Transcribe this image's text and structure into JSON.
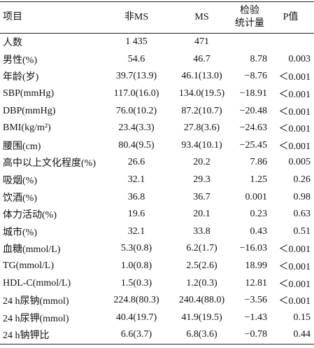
{
  "table": {
    "header": [
      "项目",
      "非MS",
      "MS",
      "检验\n统计量",
      "P值"
    ],
    "rows": [
      [
        "人数",
        "1 435",
        "471",
        "",
        ""
      ],
      [
        "男性(%)",
        "54.6",
        "46.7",
        "8.78",
        "0.003"
      ],
      [
        "年龄(岁)",
        "39.7(13.9)",
        "46.1(13.0)",
        "−8.76",
        "＜0.001"
      ],
      [
        "SBP(mmHg)",
        "117.0(16.0)",
        "134.0(19.5)",
        "−18.91",
        "＜0.001"
      ],
      [
        "DBP(mmHg)",
        "76.0(10.2)",
        "87.2(10.7)",
        "−20.48",
        "＜0.001"
      ],
      [
        "BMI(kg/m²)",
        "23.4(3.3)",
        "27.8(3.6)",
        "−24.63",
        "＜0.001"
      ],
      [
        "腰围(cm)",
        "80.4(9.5)",
        "93.4(10.1)",
        "−25.45",
        "＜0.001"
      ],
      [
        "高中以上文化程度(%)",
        "26.6",
        "20.2",
        "7.86",
        "0.005"
      ],
      [
        "吸烟(%)",
        "32.1",
        "29.3",
        "1.25",
        "0.26"
      ],
      [
        "饮酒(%)",
        "36.8",
        "36.7",
        "0.001",
        "0.98"
      ],
      [
        "体力活动(%)",
        "19.6",
        "20.1",
        "0.23",
        "0.63"
      ],
      [
        "城市(%)",
        "32.1",
        "33.8",
        "0.43",
        "0.51"
      ],
      [
        "血糖(mmol/L)",
        "5.3(0.8)",
        "6.2(1.7)",
        "−16.03",
        "＜0.001"
      ],
      [
        "TG(mmol/L)",
        "1.0(0.8)",
        "2.5(2.6)",
        "18.99",
        "＜0.001"
      ],
      [
        "HDL-C(mmol/L)",
        "1.5(0.3)",
        "1.2(0.3)",
        "12.81",
        "＜0.001"
      ],
      [
        "24 h尿钠(mmol)",
        "224.8(80.3)",
        "240.4(88.0)",
        "−3.56",
        "＜0.001"
      ],
      [
        "24 h尿钾(mmol)",
        "40.4(19.7)",
        "41.9(19.5)",
        "−1.43",
        "0.15"
      ],
      [
        "24 h钠钾比",
        "6.6(3.7)",
        "6.8(3.6)",
        "−0.78",
        "0.44"
      ]
    ]
  }
}
